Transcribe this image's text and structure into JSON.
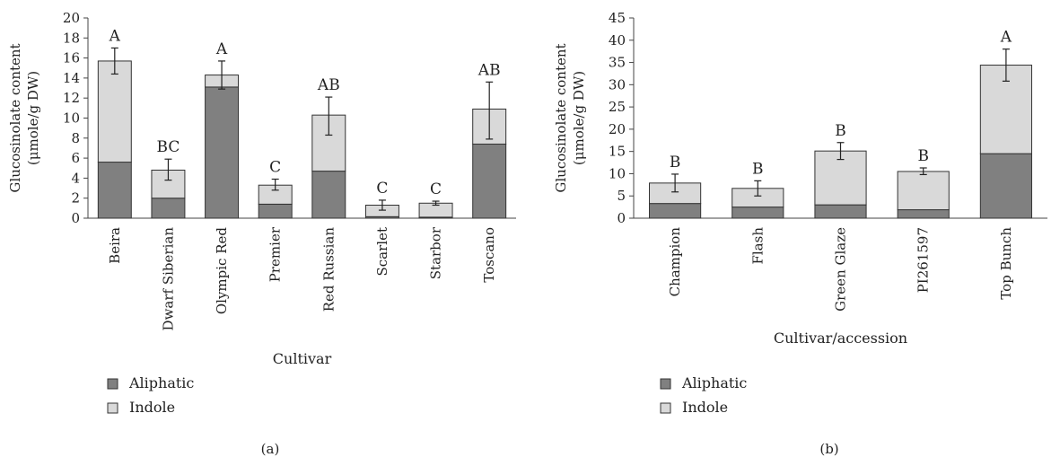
{
  "colors": {
    "aliphatic": "#808080",
    "indole": "#d9d9d9",
    "stroke": "#333333"
  },
  "chart_data": [
    {
      "type": "bar",
      "stacked": true,
      "panel_label": "(a)",
      "xlabel": "Cultivar",
      "ylabel_line1": "Glucosinolate content",
      "ylabel_line2": "(μmole/g DW)",
      "ylim": [
        0,
        20
      ],
      "yticks": [
        0,
        2,
        4,
        6,
        8,
        10,
        12,
        14,
        16,
        18,
        20
      ],
      "categories": [
        "Beira",
        "Dwarf Siberian",
        "Olympic Red",
        "Premier",
        "Red Russian",
        "Scarlet",
        "Starbor",
        "Toscano"
      ],
      "series": [
        {
          "name": "Aliphatic",
          "values": [
            5.6,
            2.0,
            13.1,
            1.4,
            4.7,
            0.15,
            0.1,
            7.4
          ]
        },
        {
          "name": "Indole",
          "values": [
            10.1,
            2.8,
            1.2,
            1.9,
            5.6,
            1.15,
            1.4,
            3.5
          ]
        }
      ],
      "error_high": [
        17.0,
        5.9,
        15.7,
        3.9,
        12.1,
        1.8,
        1.7,
        13.6
      ],
      "error_low": [
        14.4,
        3.8,
        12.9,
        2.8,
        8.3,
        0.8,
        1.3,
        7.9
      ],
      "significance": [
        "A",
        "BC",
        "A",
        "C",
        "AB",
        "C",
        "C",
        "AB"
      ],
      "legend": [
        "Aliphatic",
        "Indole"
      ]
    },
    {
      "type": "bar",
      "stacked": true,
      "panel_label": "(b)",
      "xlabel": "Cultivar/accession",
      "ylabel_line1": "Glucosinolate content",
      "ylabel_line2": "(μmole/g DW)",
      "ylim": [
        0,
        45
      ],
      "yticks": [
        0,
        5,
        10,
        15,
        20,
        25,
        30,
        35,
        40,
        45
      ],
      "categories": [
        "Champion",
        "Flash",
        "Green Glaze",
        "PI261597",
        "Top Bunch"
      ],
      "series": [
        {
          "name": "Aliphatic",
          "values": [
            3.3,
            2.5,
            3.0,
            1.9,
            14.5
          ]
        },
        {
          "name": "Indole",
          "values": [
            4.6,
            4.2,
            12.1,
            8.6,
            19.9
          ]
        }
      ],
      "error_high": [
        9.9,
        8.4,
        17.0,
        11.3,
        38.0
      ],
      "error_low": [
        5.9,
        5.0,
        13.2,
        9.8,
        30.8
      ],
      "significance": [
        "B",
        "B",
        "B",
        "B",
        "A"
      ],
      "legend": [
        "Aliphatic",
        "Indole"
      ]
    }
  ]
}
